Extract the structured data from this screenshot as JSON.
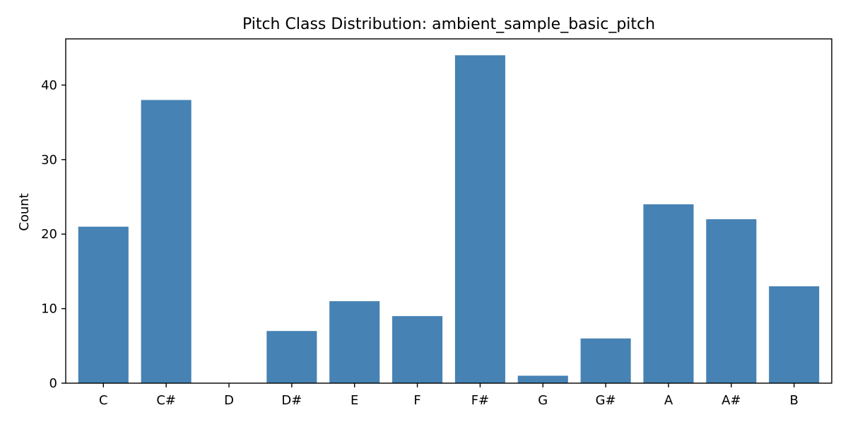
{
  "colors": {
    "bar": "#4682b4",
    "axis": "#000000",
    "background": "#ffffff"
  },
  "chart_data": {
    "type": "bar",
    "title": "Pitch Class Distribution: ambient_sample_basic_pitch",
    "xlabel": "",
    "ylabel": "Count",
    "categories": [
      "C",
      "C#",
      "D",
      "D#",
      "E",
      "F",
      "F#",
      "G",
      "G#",
      "A",
      "A#",
      "B"
    ],
    "values": [
      21,
      38,
      0,
      7,
      11,
      9,
      44,
      1,
      6,
      24,
      22,
      13
    ],
    "ylim": [
      0,
      46.2
    ],
    "yticks": [
      0,
      10,
      20,
      30,
      40
    ],
    "ytick_labels": [
      "0",
      "10",
      "20",
      "30",
      "40"
    ],
    "grid": false,
    "legend": "none"
  }
}
